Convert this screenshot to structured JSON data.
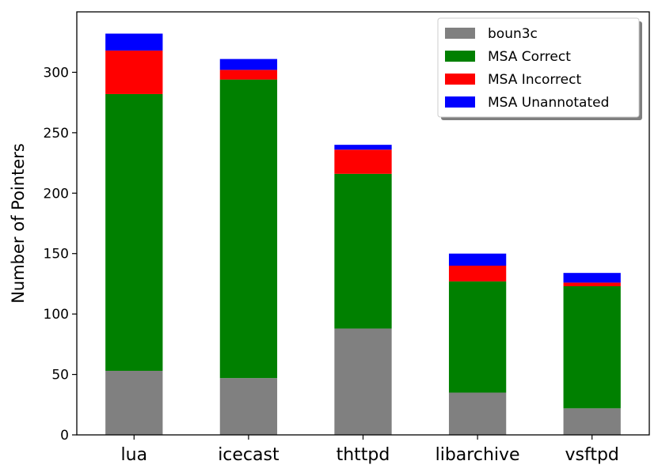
{
  "chart_data": {
    "type": "bar",
    "stacked": true,
    "title": "",
    "xlabel": "",
    "ylabel": "Number of Pointers",
    "categories": [
      "lua",
      "icecast",
      "thttpd",
      "libarchive",
      "vsftpd"
    ],
    "ylim": [
      0,
      350
    ],
    "yticks": [
      0,
      50,
      100,
      150,
      200,
      250,
      300
    ],
    "series": [
      {
        "name": "boun3c",
        "color": "#808080",
        "values": [
          53,
          47,
          88,
          35,
          22
        ]
      },
      {
        "name": "MSA Correct",
        "color": "#008000",
        "values": [
          229,
          247,
          128,
          92,
          101
        ]
      },
      {
        "name": "MSA Incorrect",
        "color": "#ff0000",
        "values": [
          36,
          8,
          20,
          13,
          3
        ]
      },
      {
        "name": "MSA Unannotated",
        "color": "#0000ff",
        "values": [
          14,
          9,
          4,
          10,
          8
        ]
      }
    ],
    "legend_position": "top-right",
    "grid": false
  }
}
